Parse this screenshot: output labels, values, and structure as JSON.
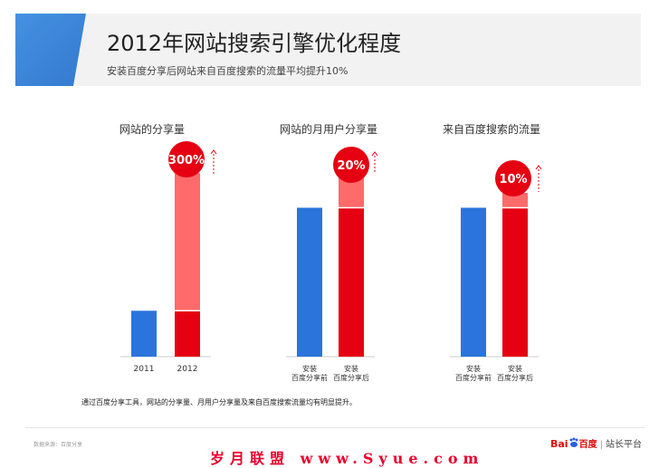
{
  "page": {
    "title": "2012年网站搜索引擎优化程度",
    "subtitle": "安装百度分享后网站来自百度搜索的流量平均提升10%"
  },
  "colors": {
    "before": "#2b74db",
    "after": "#e50012",
    "increase": "#ff6a6a",
    "header_accent": "#3b86d9",
    "header_band": "#f2f2f2"
  },
  "chart_data": [
    {
      "type": "bar",
      "title": "网站的分享量",
      "categories": [
        "2011",
        "2012"
      ],
      "values": [
        1,
        4
      ],
      "increase_label": "300%",
      "increase_base": 1,
      "ylim": [
        0,
        4.3
      ]
    },
    {
      "type": "bar",
      "title": "网站的月用户分享量",
      "categories": [
        "安装\n百度分享前",
        "安装\n百度分享后"
      ],
      "values": [
        1,
        1.2
      ],
      "increase_label": "20%",
      "increase_base": 1,
      "ylim": [
        0,
        1.55
      ]
    },
    {
      "type": "bar",
      "title": "来自百度搜索的流量",
      "categories": [
        "安装\n百度分享前",
        "安装\n百度分享后"
      ],
      "values": [
        1,
        1.1
      ],
      "increase_label": "10%",
      "increase_base": 1,
      "ylim": [
        0,
        1.55
      ]
    }
  ],
  "footnote": "通过百度分享工具，网站的分享量、月用户分享量及来自百度搜索流量均有明显提升。",
  "source": "数据来源：百度分享",
  "watermark": "岁月联盟 www.Syue.com",
  "logo": {
    "brand_left": "Bai",
    "brand_right": "百度",
    "product": "站长平台"
  }
}
